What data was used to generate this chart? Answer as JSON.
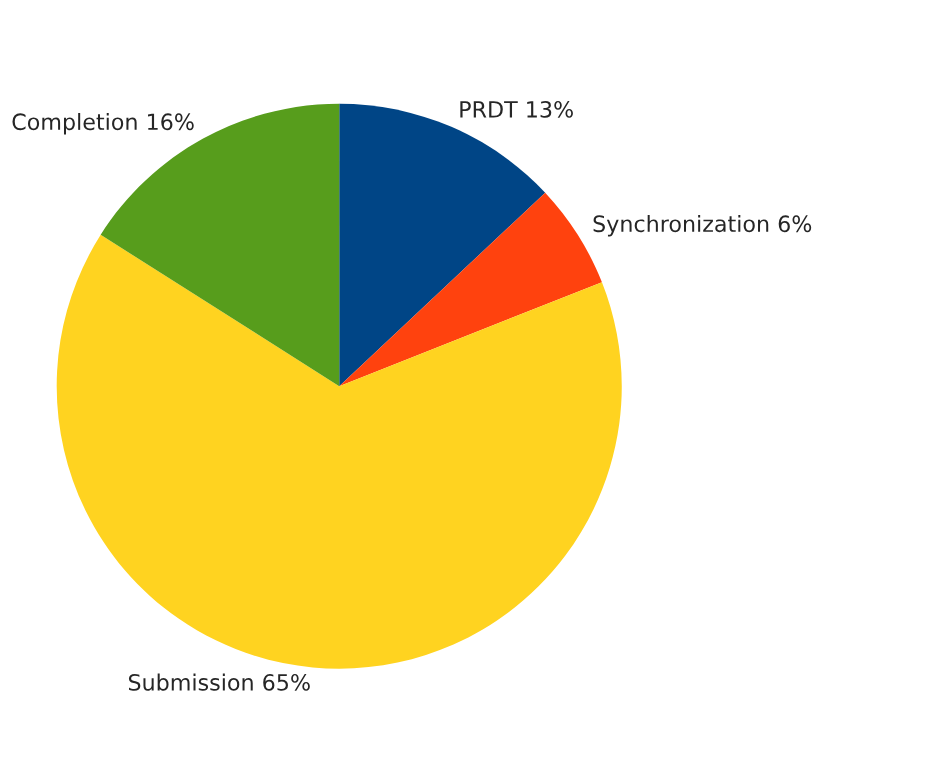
{
  "chart_data": {
    "type": "pie",
    "categories": [
      "PRDT",
      "Synchronization",
      "Submission",
      "Completion"
    ],
    "values": [
      13,
      6,
      65,
      16
    ],
    "value_labels": [
      "13%",
      "6%",
      "65%",
      "16%"
    ],
    "colors": [
      "#004586",
      "#ff420e",
      "#ffd320",
      "#579d1c"
    ]
  }
}
